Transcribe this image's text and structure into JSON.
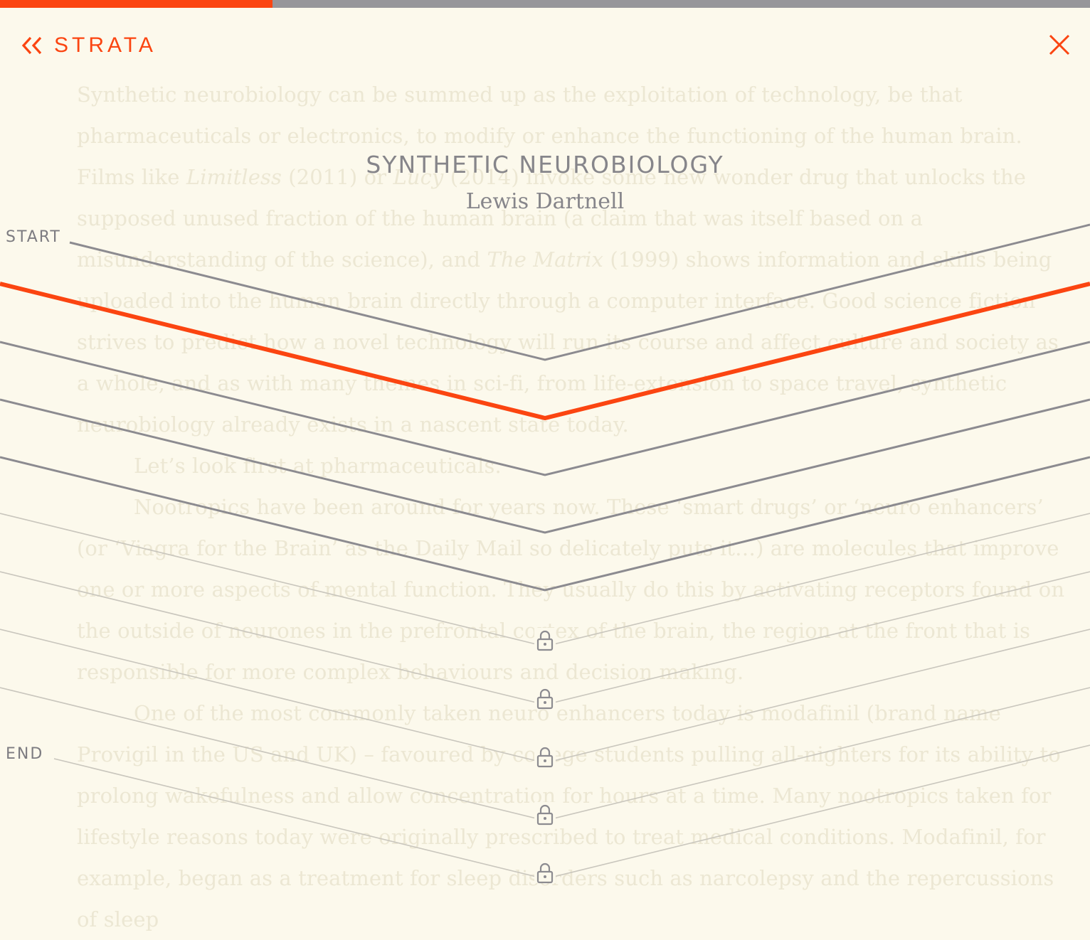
{
  "app": {
    "brand": "STRATA"
  },
  "progress": {
    "fraction": 0.25
  },
  "story": {
    "title": "SYNTHETIC NEUROBIOLOGY",
    "author": "Lewis Dartnell"
  },
  "strata_nav": {
    "start_label": "START",
    "end_label": "END",
    "layers": [
      {
        "state": "read"
      },
      {
        "state": "current"
      },
      {
        "state": "read"
      },
      {
        "state": "read"
      },
      {
        "state": "read"
      },
      {
        "state": "locked"
      },
      {
        "state": "locked"
      },
      {
        "state": "locked"
      },
      {
        "state": "locked"
      },
      {
        "state": "locked"
      }
    ]
  },
  "article": {
    "paragraphs": [
      {
        "indent": false,
        "parts": [
          {
            "text": "Synthetic neurobiology can be summed up as the exploitation of technology, be that pharmaceuticals or electronics, to modify or enhance the functioning of the human brain. Films like "
          },
          {
            "text": "Limitless",
            "italic": true
          },
          {
            "text": " (2011) or "
          },
          {
            "text": "Lucy",
            "italic": true
          },
          {
            "text": " (2014) invoke some new wonder drug that unlocks the supposed unused fraction of the human brain (a claim that was itself based on a misunderstanding of the science), and "
          },
          {
            "text": "The Matrix",
            "italic": true
          },
          {
            "text": " (1999) shows information and skills being uploaded into the human brain directly through a computer interface. Good science fiction strives to predict how a novel technology will run its course and affect culture and society as a whole, and as with many themes in sci-fi, from life-extension to space travel, synthetic neurobiology already exists in a nascent state today."
          }
        ]
      },
      {
        "indent": true,
        "parts": [
          {
            "text": "Let’s look first at pharmaceuticals."
          }
        ]
      },
      {
        "indent": true,
        "parts": [
          {
            "text": "Nootropics have been around for years now. These ‘smart drugs’ or ‘neuro enhancers’ (or ‘Viagra for the Brain’ as the Daily Mail so delicately puts it…) are molecules that improve one or more aspects of mental function. They usually do this by activating receptors found on the outside of neurones in the prefrontal cortex of the brain, the region at the front that is responsible for more complex behaviours and decision making."
          }
        ]
      },
      {
        "indent": true,
        "parts": [
          {
            "text": "One of the most commonly taken neuro enhancers today is modafinil (brand name Provigil in the US and UK) – favoured by college students pulling all-nighters for its ability to prolong wakefulness and allow concentration for hours at a time. Many nootropics taken for lifestyle reasons today were originally prescribed to treat medical conditions. Modafinil, for example, began as a treatment for sleep disorders such as narcolepsy and the repercussions of sleep"
          }
        ]
      }
    ]
  },
  "colors": {
    "accent": "#fb4511",
    "read_line": "#8c8b90",
    "locked_line": "#c9c6bd",
    "background": "#fcf9ec",
    "faded_text": "#ece7d3",
    "icon_names": [
      "double-chevron-left-icon",
      "close-icon",
      "lock-icon"
    ]
  }
}
